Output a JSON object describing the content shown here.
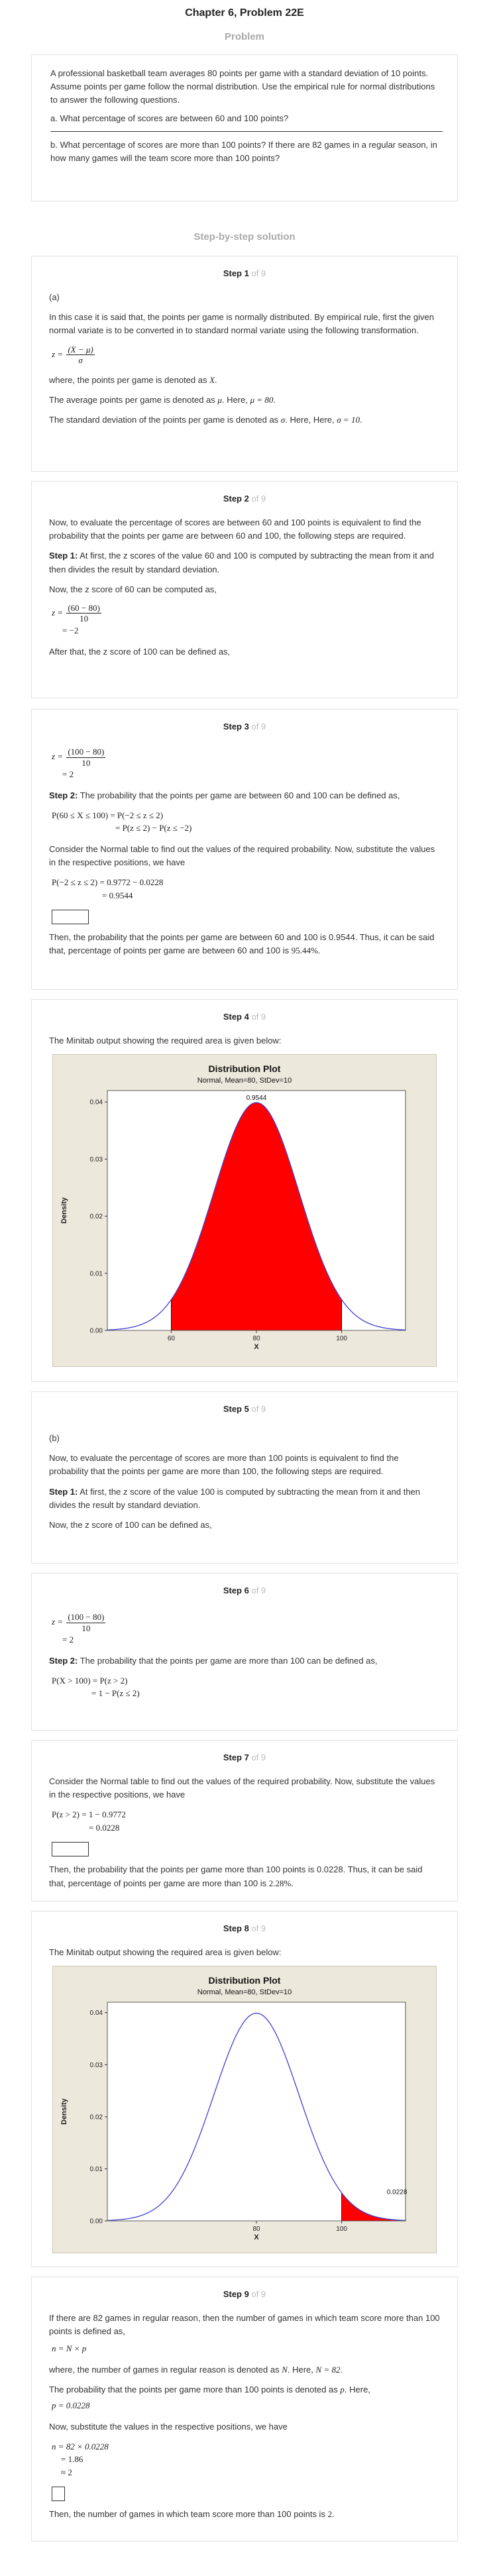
{
  "header": {
    "chapter_title": "Chapter 6, Problem 22E"
  },
  "problem": {
    "section_label": "Problem",
    "text": "A professional basketball team averages 80 points per game with a standard deviation of 10 points. Assume points per game follow the normal distribution. Use the empirical rule for normal distributions to answer the following questions.",
    "part_a": "a. What percentage of scores are between 60 and 100 points?",
    "part_b": "b. What percentage of scores are more than 100 points? If there are 82 games in a regular season, in how many games will the team score more than 100 points?"
  },
  "solution": {
    "section_label": "Step-by-step solution",
    "step_word": "Step",
    "of_total": "of 9",
    "steps": [
      {
        "number": "1",
        "part": "(a)",
        "p1": "In this case it is said that, the points per game is normally distributed. By empirical rule, first the given normal variate is to be converted in to standard normal variate using the following transformation.",
        "formula_lhs": "z =",
        "formula_num": "(X − μ)",
        "formula_den": "σ",
        "p2": "where, the points per game is denoted as",
        "p2_sym": "X",
        "p3": "The average points per game is denoted as",
        "p3_sym": "μ",
        "p3_tail": ". Here,",
        "p3_val": "μ = 80",
        "p4": "The standard deviation of the points per game is denoted as",
        "p4_sym": "σ",
        "p4_tail": ". Here, Here,",
        "p4_val": "σ = 10"
      },
      {
        "number": "2",
        "p1": "Now, to evaluate the percentage of scores are between 60 and 100 points is equivalent to find the probability that the points per game are between 60 and 100, the following steps are required.",
        "step_label": "Step 1:",
        "p2": "At first, the z scores of the value 60 and 100 is computed by subtracting the mean from it and then divides the result by standard deviation.",
        "p3": "Now, the z score of 60 can be computed as,",
        "m_lhs": "z =",
        "m_num": "(60 − 80)",
        "m_den": "10",
        "m_res": "= −2",
        "p4": "After that, the z score of 100 can be defined as,"
      },
      {
        "number": "3",
        "m_lhs": "z =",
        "m_num": "(100 − 80)",
        "m_den": "10",
        "m_res": "= 2",
        "step_label": "Step 2:",
        "p1": "The probability that the points per game are between 60 and 100 can be defined as,",
        "m2_l1": "P(60 ≤ X ≤ 100) = P(−2 ≤ z ≤ 2)",
        "m2_l2": "= P(z ≤ 2) − P(z ≤ −2)",
        "p2": "Consider the Normal table to find out the values of the required probability. Now, substitute the values in the respective positions, we have",
        "m3_l1": "P(−2 ≤ z ≤ 2) = 0.9772 − 0.0228",
        "m3_l2": "= 0.9544",
        "p3": "Then, the probability that the points per game are between 60 and 100 is 0.9544. Thus, it can be said that, percentage of points per game are between 60 and 100 is",
        "p3_val": "95.44%."
      },
      {
        "number": "4",
        "p1": "The Minitab output showing the required area is given below:"
      },
      {
        "number": "5",
        "part": "(b)",
        "p1": "Now, to evaluate the percentage of scores are more than 100 points is equivalent to find the probability that the points per game are more than 100, the following steps are required.",
        "step_label": "Step 1:",
        "p2": "At first, the z score of the value 100 is computed by subtracting the mean from it and then divides the result by standard deviation.",
        "p3": "Now, the z score of 100 can be defined as,"
      },
      {
        "number": "6",
        "m_lhs": "z =",
        "m_num": "(100 − 80)",
        "m_den": "10",
        "m_res": "= 2",
        "step_label": "Step 2:",
        "p1": "The probability that the points per game are more than 100 can be defined as,",
        "m2_l1": "P(X > 100) = P(z > 2)",
        "m2_l2": "= 1 − P(z ≤ 2)"
      },
      {
        "number": "7",
        "p1": "Consider the Normal table to find out the values of the required probability. Now, substitute the values in the respective positions, we have",
        "m_l1": "P(z > 2) = 1 − 0.9772",
        "m_l2": "= 0.0228",
        "p2": "Then, the probability that the points per game more than 100 points is 0.0228. Thus, it can be said that, percentage of points per game are more than 100 is",
        "p2_val": "2.28%."
      },
      {
        "number": "8",
        "p1": "The Minitab output showing the required area is given below:"
      },
      {
        "number": "9",
        "p1": "If there are 82 games in regular reason, then the number of games in which team score more than 100 points is defined as,",
        "m1": "n = N × p",
        "p2": "where, the number of games in regular reason is denoted as",
        "p2_sym": "N",
        "p2_tail": ". Here,",
        "p2_val": "N = 82",
        "p3": "The probability that the points per game more than 100 points is denoted as",
        "p3_sym": "p",
        "p3_tail": ". Here,",
        "p3_val": "p = 0.0228",
        "p4": "Now, substitute the values in the respective positions, we have",
        "m2_l1": "n = 82 × 0.0228",
        "m2_l2": "= 1.86",
        "m2_l3": "≈ 2",
        "p5": "Then, the number of games in which team score more than 100 points is",
        "p5_val": "2."
      }
    ]
  },
  "chart_data": [
    {
      "type": "area",
      "title": "Distribution Plot",
      "subtitle": "Normal, Mean=80, StDev=10",
      "xlabel": "X",
      "ylabel": "Density",
      "distribution": {
        "mean": 80,
        "stdev": 10
      },
      "x_ticks": [
        60,
        80,
        100
      ],
      "y_ticks": [
        "0.00",
        "0.01",
        "0.02",
        "0.03",
        "0.04"
      ],
      "ylim": [
        0,
        0.042
      ],
      "xlim": [
        45,
        115
      ],
      "shaded_region": {
        "from": 60,
        "to": 100
      },
      "shaded_label": "0.9544",
      "shade_color": "#ff0000",
      "curve_color": "#4040d0"
    },
    {
      "type": "area",
      "title": "Distribution Plot",
      "subtitle": "Normal, Mean=80, StDev=10",
      "xlabel": "X",
      "ylabel": "Density",
      "distribution": {
        "mean": 80,
        "stdev": 10
      },
      "x_ticks": [
        80,
        100
      ],
      "y_ticks": [
        "0.00",
        "0.01",
        "0.02",
        "0.03",
        "0.04"
      ],
      "ylim": [
        0,
        0.042
      ],
      "xlim": [
        45,
        115
      ],
      "shaded_region": {
        "from": 100,
        "to": 115
      },
      "shaded_label": "0.0228",
      "shade_color": "#ff0000",
      "curve_color": "#4040d0"
    }
  ]
}
